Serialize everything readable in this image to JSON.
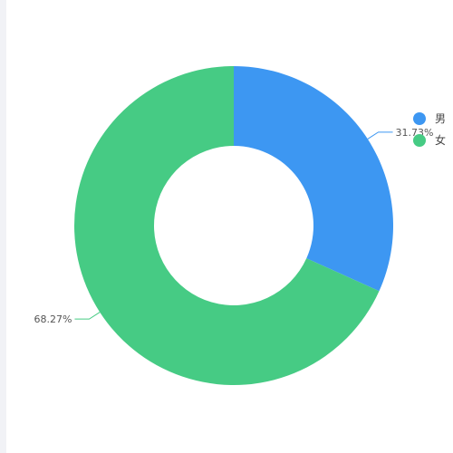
{
  "chart_data": {
    "type": "pie",
    "subtype": "donut",
    "categories": [
      "男",
      "女"
    ],
    "values": [
      31.73,
      68.27
    ],
    "labels": [
      "31.73%",
      "68.27%"
    ],
    "colors": [
      "#3d97f2",
      "#46cb84"
    ],
    "legend": {
      "placement": "right",
      "items": [
        {
          "name": "男",
          "color": "#3d97f2"
        },
        {
          "name": "女",
          "color": "#46cb84"
        }
      ]
    }
  }
}
